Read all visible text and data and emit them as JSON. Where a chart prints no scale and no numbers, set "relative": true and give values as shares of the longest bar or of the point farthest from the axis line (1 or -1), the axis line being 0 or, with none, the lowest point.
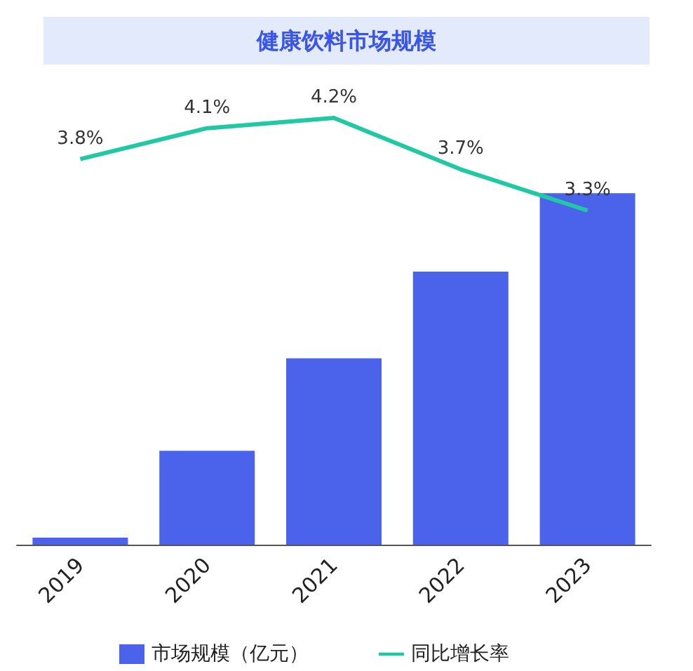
{
  "chart_data": [
    {
      "type": "bar",
      "title": "健康饮料市场规模",
      "categories": [
        "2019",
        "2020",
        "2021",
        "2022",
        "2023"
      ],
      "relative": true,
      "legend": "bottom",
      "series": [
        {
          "name": "市场规模（亿元）",
          "color": "#4a63ea",
          "values": [
            0.02,
            0.267,
            0.53,
            0.777,
            1
          ]
        }
      ]
    },
    {
      "type": "line",
      "categories": [
        "2019",
        "2020",
        "2021",
        "2022",
        "2023"
      ],
      "legend": "bottom",
      "marker": "none",
      "tick_labels": false,
      "series": [
        {
          "name": "同比增长率",
          "color": "#20c9a4",
          "values": [
            3.8,
            4.1,
            4.2,
            3.7,
            3.3
          ],
          "value_labels": [
            "3.8%",
            "4.1%",
            "4.2%",
            "3.7%",
            "3.3%"
          ]
        }
      ]
    }
  ]
}
